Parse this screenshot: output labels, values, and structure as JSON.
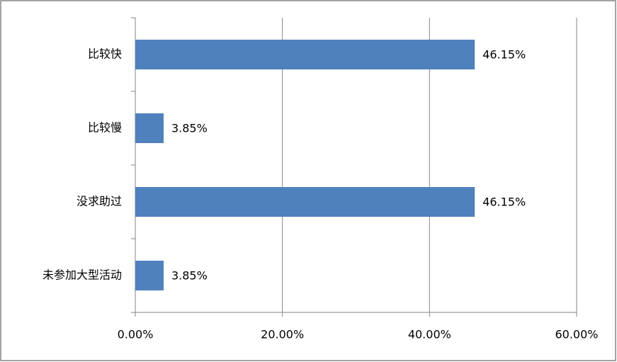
{
  "chart_data": {
    "type": "hbar",
    "categories": [
      "比较快",
      "比较慢",
      "没求助过",
      "未参加大型活动"
    ],
    "values": [
      46.15,
      3.85,
      46.15,
      3.85
    ],
    "value_labels": [
      "46.15%",
      "3.85%",
      "46.15%",
      "3.85%"
    ],
    "color": "#4f81bd",
    "xlim": [
      0,
      60
    ],
    "xticks": [
      {
        "value": 0,
        "label": "0.00%"
      },
      {
        "value": 20,
        "label": "20.00%"
      },
      {
        "value": 40,
        "label": "40.00%"
      },
      {
        "value": 60,
        "label": "60.00%"
      }
    ],
    "grid": true
  }
}
